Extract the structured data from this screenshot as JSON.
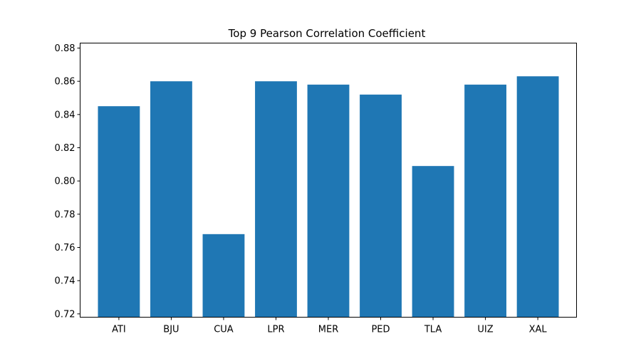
{
  "chart_data": {
    "type": "bar",
    "title": "Top 9 Pearson Correlation Coefficient",
    "xlabel": "",
    "ylabel": "",
    "categories": [
      "ATI",
      "BJU",
      "CUA",
      "LPR",
      "MER",
      "PED",
      "TLA",
      "UIZ",
      "XAL"
    ],
    "values": [
      0.845,
      0.86,
      0.768,
      0.86,
      0.858,
      0.852,
      0.809,
      0.858,
      0.863
    ],
    "ylim": [
      0.718,
      0.883
    ],
    "yticks": [
      "0.72",
      "0.74",
      "0.76",
      "0.78",
      "0.80",
      "0.82",
      "0.84",
      "0.86",
      "0.88"
    ],
    "bar_color": "#1f77b4",
    "grid": false,
    "legend": "none"
  }
}
